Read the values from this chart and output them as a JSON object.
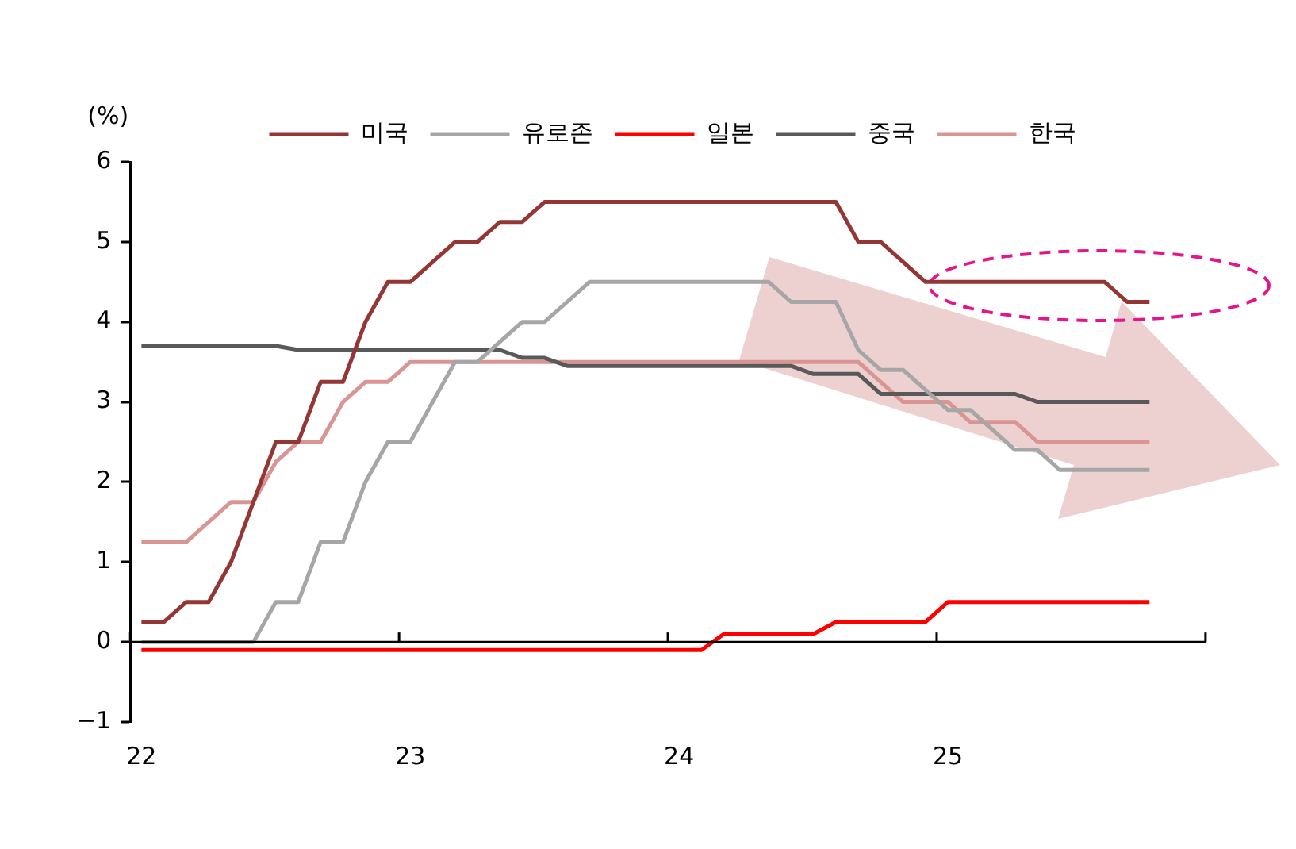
{
  "chart_data": {
    "type": "line",
    "ylabel": "(%)",
    "categories": [
      "22",
      null,
      null,
      null,
      null,
      null,
      null,
      null,
      null,
      null,
      null,
      null,
      "23",
      null,
      null,
      null,
      null,
      null,
      null,
      null,
      null,
      null,
      null,
      null,
      "24",
      null,
      null,
      null,
      null,
      null,
      null,
      null,
      null,
      null,
      null,
      null,
      "25",
      null,
      null,
      null,
      null,
      null,
      null,
      null,
      null,
      null,
      null,
      null
    ],
    "series": [
      {
        "name": "미국",
        "color": "#943634",
        "values": [
          0.25,
          0.25,
          0.5,
          0.5,
          1,
          1.75,
          2.5,
          2.5,
          3.25,
          3.25,
          4,
          4.5,
          4.5,
          4.75,
          5,
          5,
          5.25,
          5.25,
          5.5,
          5.5,
          5.5,
          5.5,
          5.5,
          5.5,
          5.5,
          5.5,
          5.5,
          5.5,
          5.5,
          5.5,
          5.5,
          5.5,
          5,
          5,
          4.75,
          4.5,
          4.5,
          4.5,
          4.5,
          4.5,
          4.5,
          4.5,
          4.5,
          4.5,
          4.25,
          4.25,
          null,
          null
        ]
      },
      {
        "name": "유로존",
        "color": "#a6a6a6",
        "values": [
          0,
          0,
          0,
          0,
          0,
          0,
          0.5,
          0.5,
          1.25,
          1.25,
          2,
          2.5,
          2.5,
          3,
          3.5,
          3.5,
          3.75,
          4,
          4,
          4.25,
          4.5,
          4.5,
          4.5,
          4.5,
          4.5,
          4.5,
          4.5,
          4.5,
          4.5,
          4.25,
          4.25,
          4.25,
          3.65,
          3.4,
          3.4,
          3.15,
          2.9,
          2.9,
          2.65,
          2.4,
          2.4,
          2.15,
          2.15,
          2.15,
          2.15,
          2.15,
          null,
          null
        ]
      },
      {
        "name": "일본",
        "color": "#ff0000",
        "values": [
          -0.1,
          -0.1,
          -0.1,
          -0.1,
          -0.1,
          -0.1,
          -0.1,
          -0.1,
          -0.1,
          -0.1,
          -0.1,
          -0.1,
          -0.1,
          -0.1,
          -0.1,
          -0.1,
          -0.1,
          -0.1,
          -0.1,
          -0.1,
          -0.1,
          -0.1,
          -0.1,
          -0.1,
          -0.1,
          -0.1,
          0.1,
          0.1,
          0.1,
          0.1,
          0.1,
          0.25,
          0.25,
          0.25,
          0.25,
          0.25,
          0.5,
          0.5,
          0.5,
          0.5,
          0.5,
          0.5,
          0.5,
          0.5,
          0.5,
          0.5,
          null,
          null
        ]
      },
      {
        "name": "중국",
        "color": "#595959",
        "values": [
          3.7,
          3.7,
          3.7,
          3.7,
          3.7,
          3.7,
          3.7,
          3.65,
          3.65,
          3.65,
          3.65,
          3.65,
          3.65,
          3.65,
          3.65,
          3.65,
          3.65,
          3.55,
          3.55,
          3.45,
          3.45,
          3.45,
          3.45,
          3.45,
          3.45,
          3.45,
          3.45,
          3.45,
          3.45,
          3.45,
          3.35,
          3.35,
          3.35,
          3.1,
          3.1,
          3.1,
          3.1,
          3.1,
          3.1,
          3.1,
          3,
          3,
          3,
          3,
          3,
          3,
          null,
          null
        ]
      },
      {
        "name": "한국",
        "color": "#d99594",
        "values": [
          1.25,
          1.25,
          1.25,
          1.5,
          1.75,
          1.75,
          2.25,
          2.5,
          2.5,
          3,
          3.25,
          3.25,
          3.5,
          3.5,
          3.5,
          3.5,
          3.5,
          3.5,
          3.5,
          3.5,
          3.5,
          3.5,
          3.5,
          3.5,
          3.5,
          3.5,
          3.5,
          3.5,
          3.5,
          3.5,
          3.5,
          3.5,
          3.5,
          3.25,
          3,
          3,
          3,
          2.75,
          2.75,
          2.75,
          2.5,
          2.5,
          2.5,
          2.5,
          2.5,
          2.5,
          null,
          null
        ]
      }
    ],
    "ylim": [
      -1,
      6
    ],
    "yticks": [
      {
        "value": -1,
        "label": "−1"
      },
      0,
      1,
      2,
      3,
      4,
      5,
      6
    ],
    "ref_lines": [
      {
        "axis": "y",
        "value": 0,
        "color": "#000000"
      }
    ],
    "legend": "top",
    "grid": false,
    "marker": "none",
    "line_style": "solid"
  }
}
